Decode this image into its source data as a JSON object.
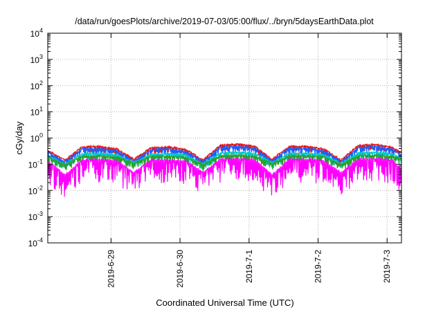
{
  "chart_data": {
    "type": "line",
    "title": "/data/run/goesPlots/archive/2019-07-03/05:00/flux/../bryn/5daysEarthData.plot",
    "xlabel": "Coordinated Universal Time (UTC)",
    "ylabel": "cGy/day",
    "yscale": "log",
    "ylim": [
      0.0001,
      10000
    ],
    "y_ticks": [
      {
        "base": "10",
        "exp": "-4"
      },
      {
        "base": "10",
        "exp": "-3"
      },
      {
        "base": "10",
        "exp": "-2"
      },
      {
        "base": "10",
        "exp": "-1"
      },
      {
        "base": "10",
        "exp": "0"
      },
      {
        "base": "10",
        "exp": "1"
      },
      {
        "base": "10",
        "exp": "2"
      },
      {
        "base": "10",
        "exp": "3"
      },
      {
        "base": "10",
        "exp": "4"
      }
    ],
    "x_range": [
      "2019-06-28 02:00",
      "2019-07-03 05:00"
    ],
    "x_ticks": [
      "2019-6-29",
      "2019-6-30",
      "2019-7-1",
      "2019-7-2",
      "2019-7-3"
    ],
    "grid": true,
    "legend": "none",
    "x": [
      "2019-06-28 02:00",
      "2019-06-28 08:00",
      "2019-06-28 14:00",
      "2019-06-28 20:00",
      "2019-06-29 02:00",
      "2019-06-29 08:00",
      "2019-06-29 14:00",
      "2019-06-29 20:00",
      "2019-06-30 02:00",
      "2019-06-30 08:00",
      "2019-06-30 14:00",
      "2019-06-30 20:00",
      "2019-07-01 02:00",
      "2019-07-01 08:00",
      "2019-07-01 14:00",
      "2019-07-01 20:00",
      "2019-07-02 02:00",
      "2019-07-02 08:00",
      "2019-07-02 14:00",
      "2019-07-02 20:00",
      "2019-07-03 02:00",
      "2019-07-03 05:00"
    ],
    "series": [
      {
        "color": "#e41a1c",
        "values": [
          0.35,
          0.15,
          0.48,
          0.5,
          0.4,
          0.16,
          0.45,
          0.48,
          0.38,
          0.15,
          0.55,
          0.6,
          0.5,
          0.16,
          0.5,
          0.5,
          0.4,
          0.15,
          0.55,
          0.6,
          0.45,
          0.28
        ]
      },
      {
        "color": "#1f5fff",
        "values": [
          0.3,
          0.13,
          0.4,
          0.42,
          0.34,
          0.14,
          0.38,
          0.4,
          0.32,
          0.13,
          0.45,
          0.5,
          0.42,
          0.14,
          0.42,
          0.42,
          0.34,
          0.13,
          0.45,
          0.5,
          0.38,
          0.24
        ]
      },
      {
        "color": "#00c8c8",
        "values": [
          0.22,
          0.11,
          0.26,
          0.27,
          0.24,
          0.12,
          0.25,
          0.26,
          0.23,
          0.11,
          0.28,
          0.3,
          0.27,
          0.12,
          0.27,
          0.27,
          0.24,
          0.11,
          0.28,
          0.3,
          0.25,
          0.18
        ]
      },
      {
        "color": "#2ca02c",
        "values": [
          0.19,
          0.1,
          0.21,
          0.22,
          0.2,
          0.11,
          0.21,
          0.21,
          0.19,
          0.1,
          0.22,
          0.23,
          0.21,
          0.11,
          0.22,
          0.22,
          0.2,
          0.1,
          0.22,
          0.23,
          0.21,
          0.16
        ]
      },
      {
        "color": "#ff00ff",
        "values": [
          0.14,
          0.04,
          0.15,
          0.16,
          0.14,
          0.05,
          0.15,
          0.15,
          0.14,
          0.05,
          0.16,
          0.17,
          0.15,
          0.04,
          0.16,
          0.16,
          0.14,
          0.05,
          0.16,
          0.17,
          0.15,
          0.06
        ]
      }
    ]
  }
}
